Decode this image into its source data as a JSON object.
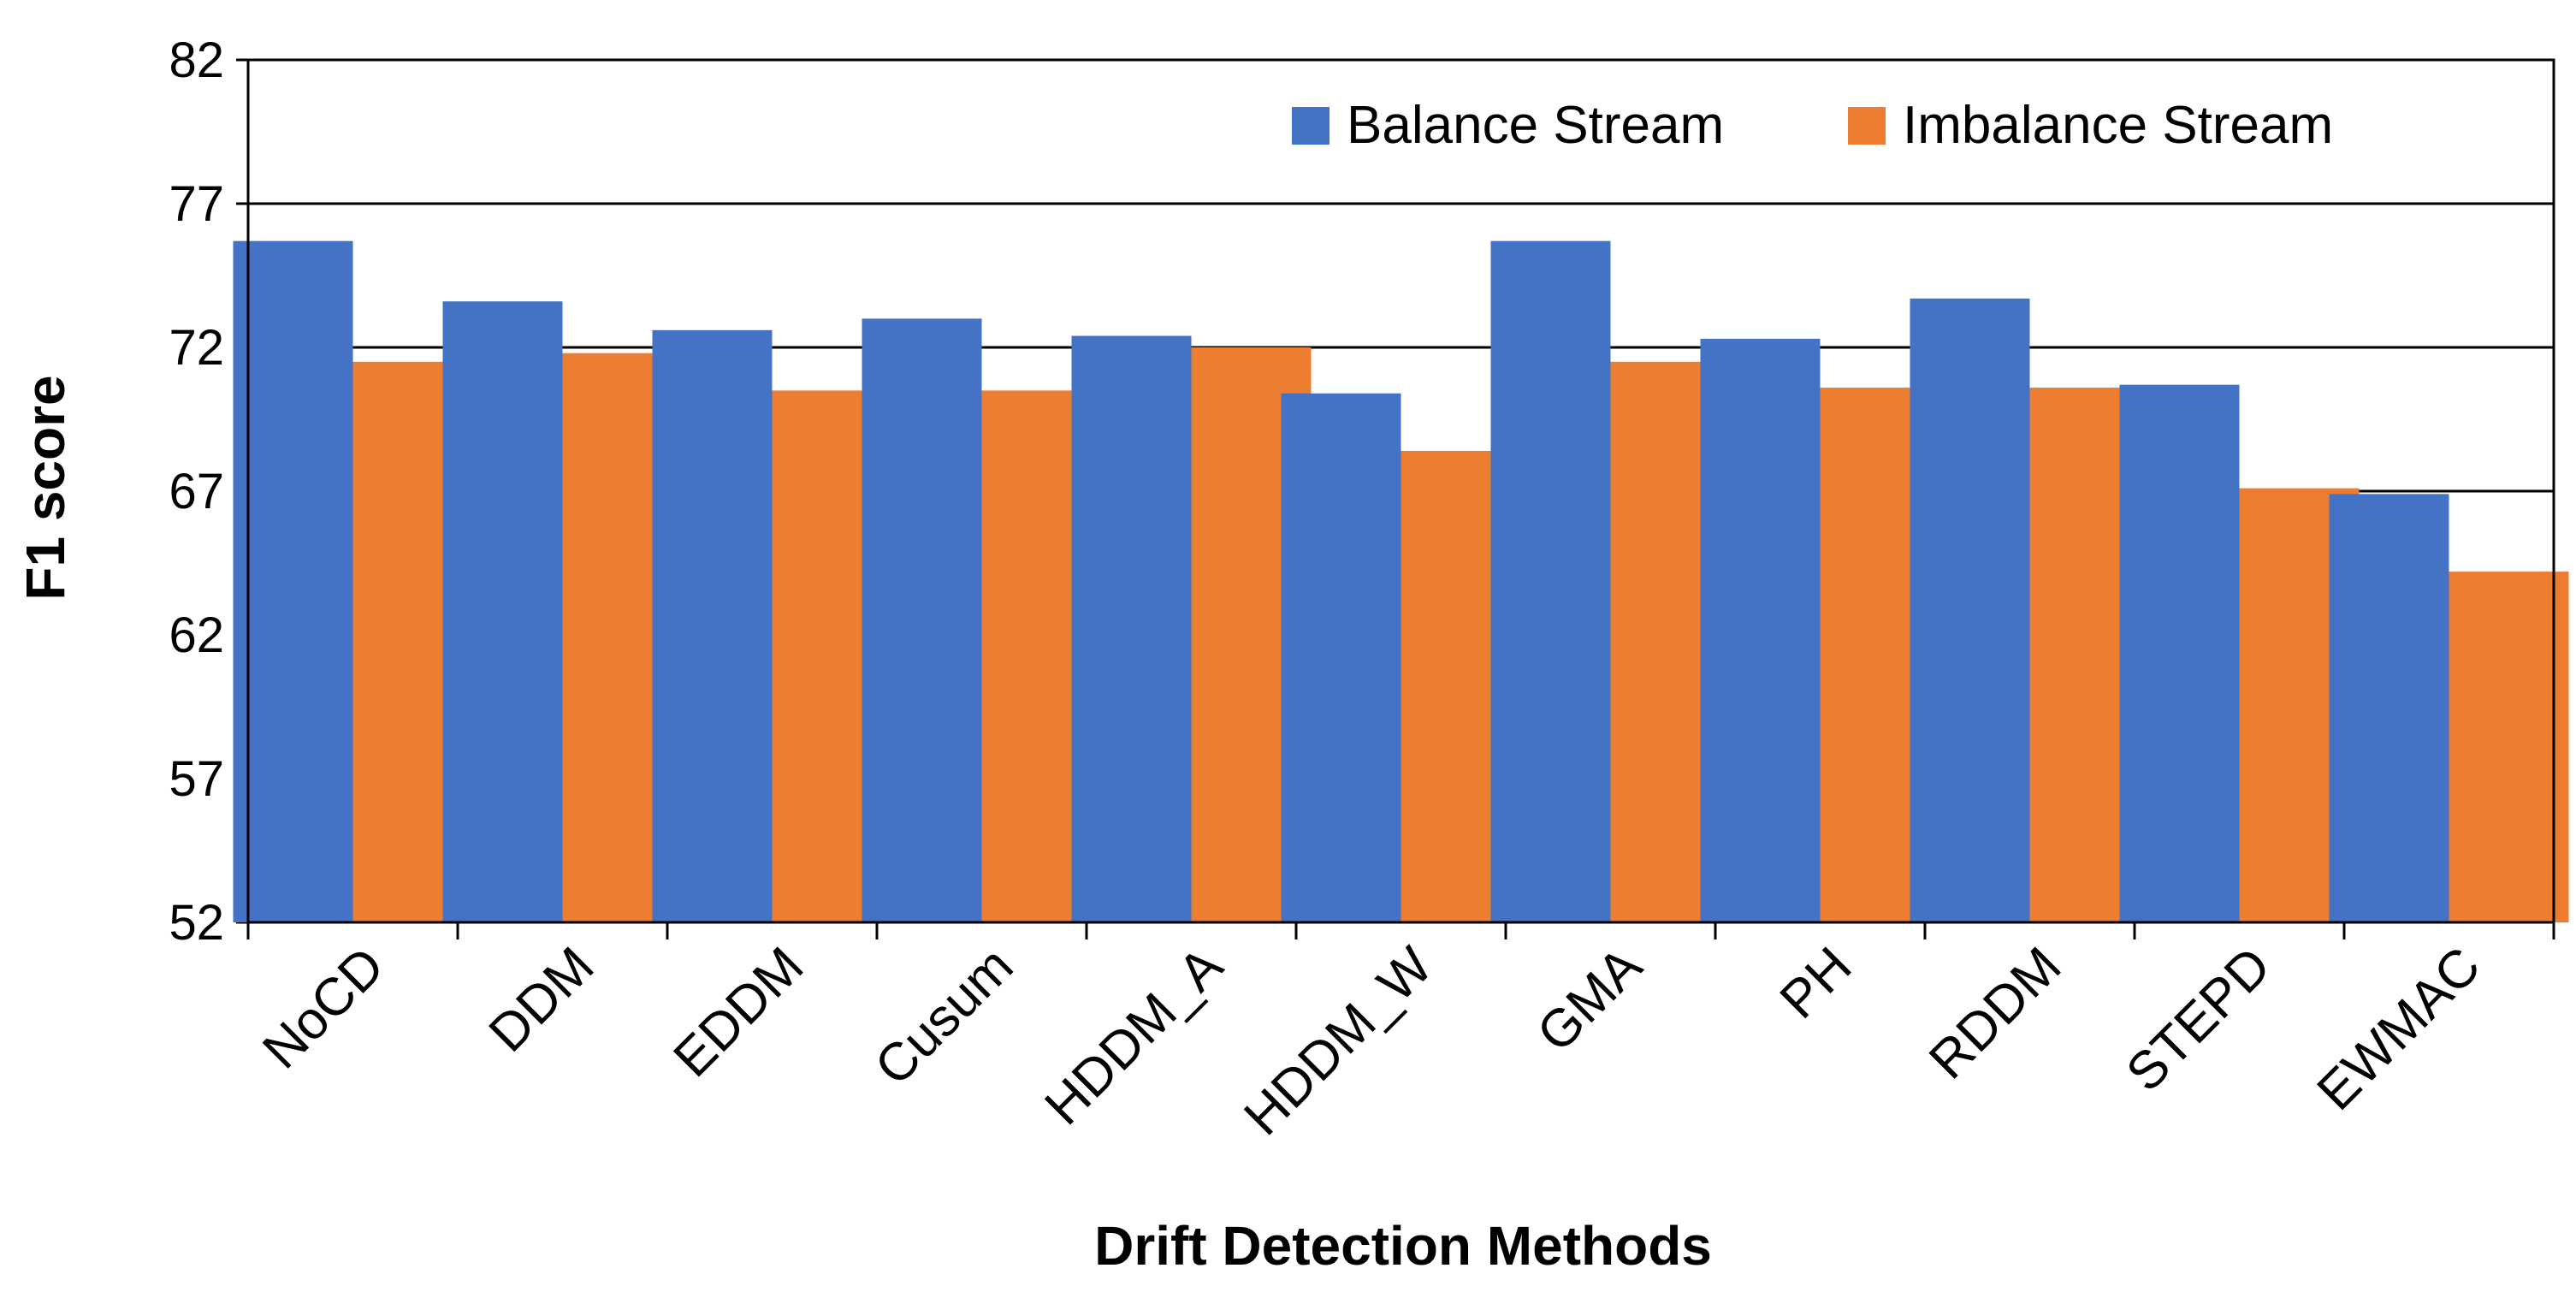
{
  "chart_data": {
    "type": "bar",
    "title": "",
    "xlabel": "Drift Detection Methods",
    "ylabel": "F1 score",
    "ylim": [
      52,
      82
    ],
    "yticks": [
      52,
      57,
      62,
      67,
      72,
      77,
      82
    ],
    "grid": true,
    "legend_position": "top-right",
    "categories": [
      "NoCD",
      "DDM",
      "EDDM",
      "Cusum",
      "HDDM_A",
      "HDDM_W",
      "GMA",
      "PH",
      "RDDM",
      "STEPD",
      "EWMAC"
    ],
    "series": [
      {
        "name": "Balance Stream",
        "color": "#4472C4",
        "values": [
          75.7,
          73.6,
          72.6,
          73.0,
          72.4,
          70.4,
          75.7,
          72.3,
          73.7,
          70.7,
          66.9
        ]
      },
      {
        "name": "Imbalance Stream",
        "color": "#ED7D31",
        "values": [
          71.5,
          71.8,
          70.5,
          70.5,
          72.0,
          68.4,
          71.5,
          70.6,
          70.6,
          67.1,
          64.2
        ]
      }
    ]
  }
}
